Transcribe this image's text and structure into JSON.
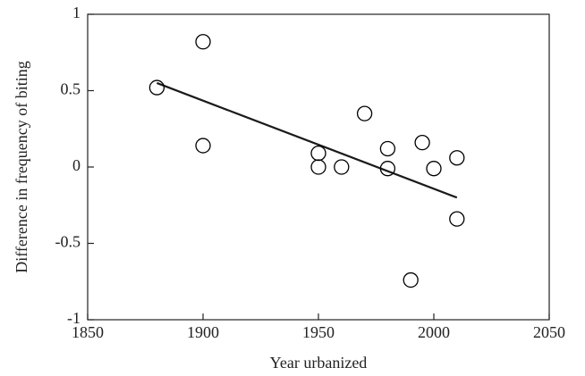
{
  "chart_data": {
    "type": "scatter",
    "x_label": "Year urbanized",
    "y_label": "Difference in frequency of biting",
    "x": [
      1880,
      1900,
      1900,
      1950,
      1950,
      1960,
      1970,
      1980,
      1980,
      1990,
      1995,
      2000,
      2010,
      2010
    ],
    "values": [
      0.52,
      0.82,
      0.14,
      0.09,
      0.0,
      0.0,
      0.35,
      0.12,
      -0.01,
      -0.74,
      0.16,
      -0.01,
      0.06,
      -0.34
    ],
    "color": "#000000",
    "trend_line": {
      "x": [
        1880,
        2010
      ],
      "values": [
        0.55,
        -0.2
      ],
      "color": "#1a1a1a"
    },
    "xlim": [
      1850,
      2050
    ],
    "xticks": [
      1850,
      1900,
      1950,
      2000,
      2050
    ],
    "ylim": [
      -1,
      1
    ],
    "yticks": [
      -1,
      -0.5,
      0,
      0.5,
      1
    ],
    "grid": false
  }
}
